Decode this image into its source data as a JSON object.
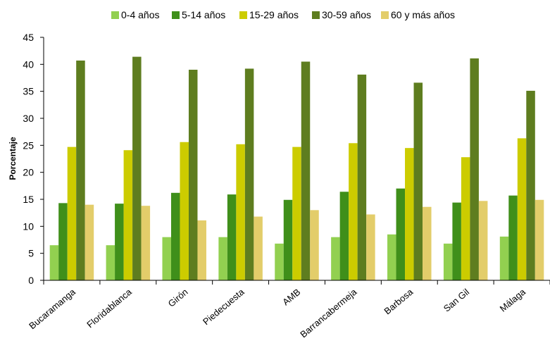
{
  "chart_data": {
    "type": "bar",
    "title": "",
    "xlabel": "",
    "ylabel": "Porcentaje",
    "ylim": [
      0,
      45
    ],
    "yticks": [
      0,
      5,
      10,
      15,
      20,
      25,
      30,
      35,
      40,
      45
    ],
    "grid": false,
    "legend_position": "top",
    "categories": [
      "Bucaramanga",
      "Floridablanca",
      "Girón",
      "Piedecuesta",
      "AMB",
      "Barrancabermeja",
      "Barbosa",
      "San Gil",
      "Málaga"
    ],
    "series": [
      {
        "name": "0-4 años",
        "color": "#92d050",
        "values": [
          6.5,
          6.5,
          8.0,
          8.0,
          6.8,
          8.0,
          8.5,
          6.8,
          8.1
        ]
      },
      {
        "name": "5-14 años",
        "color": "#3f8f1a",
        "values": [
          14.3,
          14.2,
          16.2,
          15.9,
          14.9,
          16.4,
          17.0,
          14.4,
          15.7
        ]
      },
      {
        "name": "15-29 años",
        "color": "#cccc00",
        "values": [
          24.7,
          24.1,
          25.6,
          25.2,
          24.7,
          25.4,
          24.5,
          22.8,
          26.3
        ]
      },
      {
        "name": "30-59 años",
        "color": "#5e7d1f",
        "values": [
          40.7,
          41.4,
          39.0,
          39.2,
          40.5,
          38.1,
          36.6,
          41.1,
          35.1
        ]
      },
      {
        "name": "60 y más años",
        "color": "#e3cd6a",
        "values": [
          14.0,
          13.8,
          11.1,
          11.8,
          13.0,
          12.2,
          13.6,
          14.7,
          14.9
        ]
      }
    ]
  }
}
